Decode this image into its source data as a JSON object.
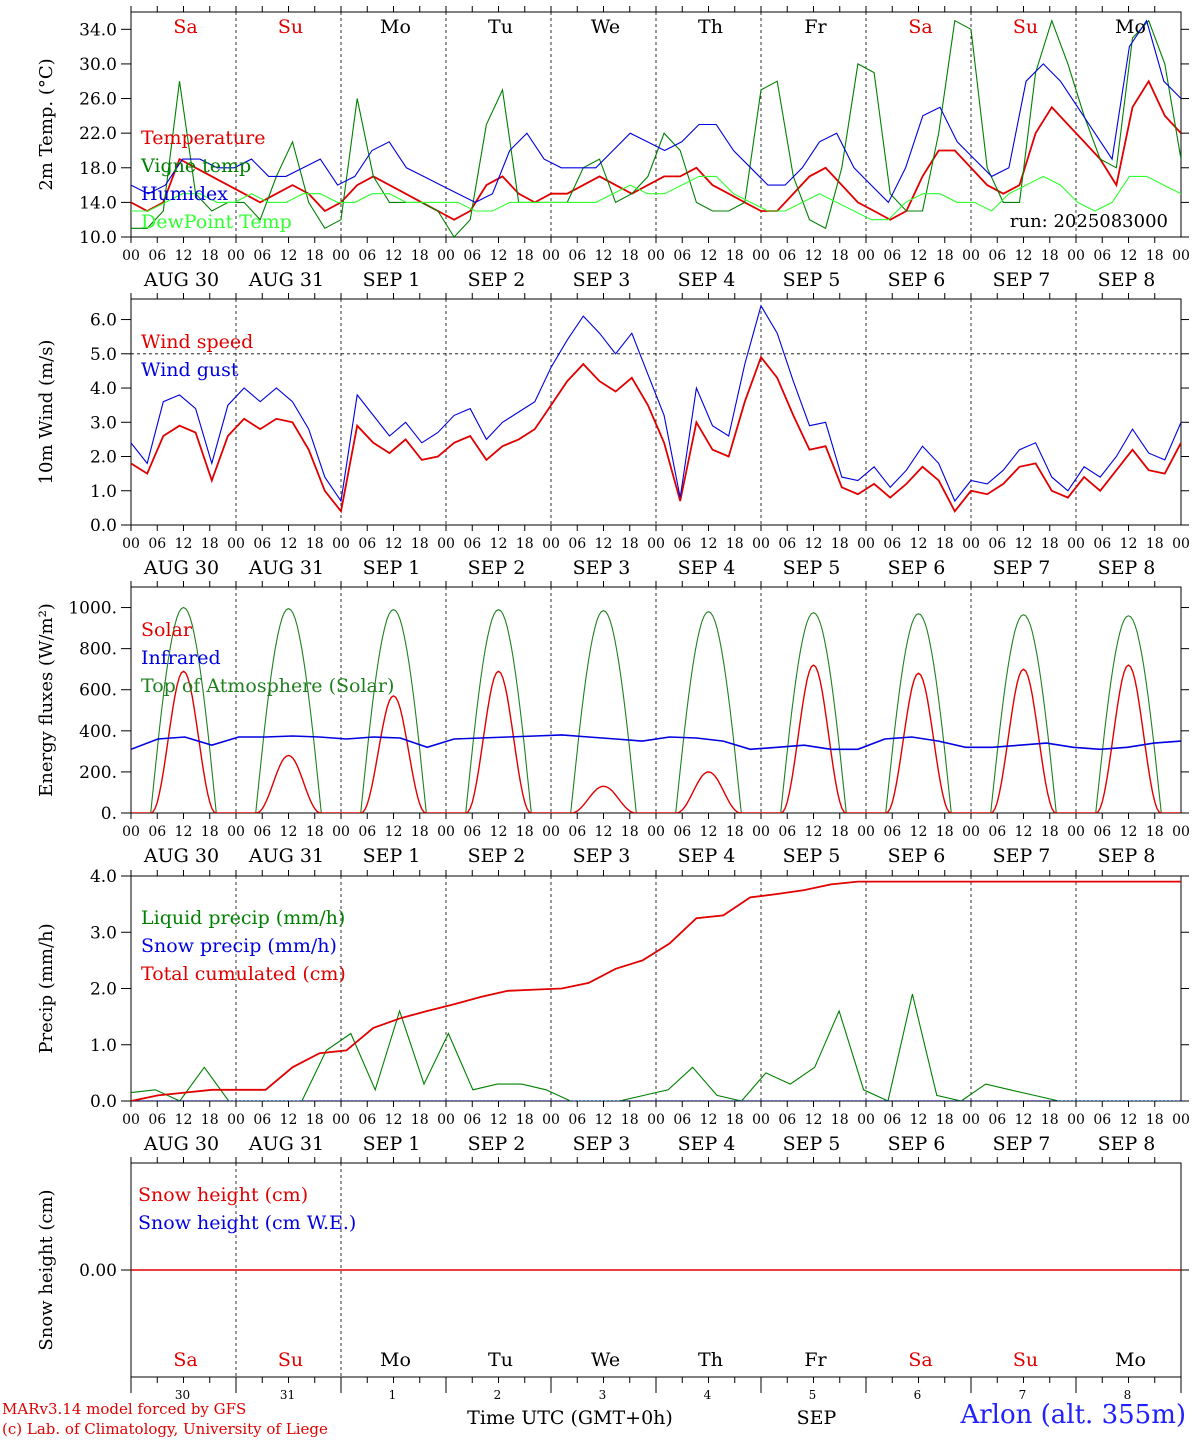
{
  "chart_data": {
    "type": "line",
    "day_names": [
      "Sa",
      "Su",
      "Mo",
      "Tu",
      "We",
      "Th",
      "Fr",
      "Sa",
      "Su",
      "Mo"
    ],
    "day_colors": [
      "#e00000",
      "#e00000",
      "#000000",
      "#000000",
      "#000000",
      "#000000",
      "#000000",
      "#e00000",
      "#e00000",
      "#000000"
    ],
    "date_labels": [
      "AUG 30",
      "AUG 31",
      "SEP  1",
      "SEP  2",
      "SEP  3",
      "SEP  4",
      "SEP  5",
      "SEP  6",
      "SEP  7",
      "SEP  8"
    ],
    "hour_ticks": [
      "00",
      "06",
      "12",
      "18"
    ],
    "bottom_day_numbers": [
      "30",
      "31",
      "1",
      "2",
      "3",
      "4",
      "5",
      "6",
      "7",
      "8"
    ],
    "bottom_month": "SEP",
    "xlabel": "Time UTC (GMT+0h)",
    "run_label": "run: 2025083000",
    "panels": [
      {
        "id": "temperature",
        "ylabel": "2m Temp. (°C)",
        "ylim": [
          10,
          36
        ],
        "yticks": [
          "10.0",
          "14.0",
          "18.0",
          "22.0",
          "26.0",
          "30.0",
          "34.0"
        ],
        "ytick_values": [
          10,
          14,
          18,
          22,
          26,
          30,
          34
        ],
        "series": [
          {
            "name": "Temperature",
            "color": "#e00000",
            "values": [
              14,
              13,
              14,
              19,
              18,
              17,
              16,
              15,
              14,
              15,
              16,
              15,
              13,
              14,
              16,
              17,
              16,
              15,
              14,
              13,
              12,
              13,
              16,
              17,
              15,
              14,
              15,
              15,
              16,
              17,
              16,
              15,
              16,
              17,
              17,
              18,
              16,
              15,
              14,
              13,
              13,
              15,
              17,
              18,
              16,
              14,
              13,
              12,
              13,
              17,
              20,
              20,
              18,
              16,
              15,
              16,
              22,
              25,
              23,
              21,
              19,
              16,
              25,
              28,
              24,
              22
            ]
          },
          {
            "name": "Vigne temp",
            "color": "#008000",
            "values": [
              11,
              11,
              13,
              28,
              15,
              13,
              14,
              14,
              12,
              17,
              21,
              14,
              11,
              12,
              26,
              17,
              14,
              14,
              14,
              13,
              10,
              12,
              23,
              27,
              14,
              14,
              14,
              14,
              18,
              19,
              14,
              15,
              17,
              22,
              20,
              14,
              13,
              13,
              14,
              27,
              28,
              17,
              12,
              11,
              18,
              30,
              29,
              15,
              13,
              13,
              22,
              35,
              34,
              18,
              14,
              14,
              29,
              35,
              30,
              24,
              19,
              18,
              33,
              35,
              30,
              19
            ]
          },
          {
            "name": "Humidex",
            "color": "#0000e0",
            "values": [
              16,
              15,
              16,
              19,
              19,
              18,
              18,
              19,
              17,
              17,
              18,
              19,
              16,
              17,
              20,
              21,
              18,
              17,
              16,
              15,
              14,
              15,
              20,
              22,
              19,
              18,
              18,
              18,
              20,
              22,
              21,
              20,
              21,
              23,
              23,
              20,
              18,
              16,
              16,
              18,
              21,
              22,
              18,
              16,
              14,
              18,
              24,
              25,
              21,
              19,
              17,
              18,
              28,
              30,
              28,
              25,
              22,
              19,
              32,
              35,
              28,
              26
            ]
          },
          {
            "name": "DewPoint Temp",
            "color": "#30ff30",
            "values": [
              13,
              13,
              14,
              15,
              15,
              14,
              14,
              15,
              14,
              14,
              15,
              15,
              14,
              14,
              15,
              15,
              14,
              14,
              14,
              14,
              13,
              13,
              14,
              14,
              14,
              14,
              14,
              14,
              15,
              16,
              15,
              15,
              16,
              17,
              17,
              15,
              14,
              13,
              13,
              14,
              15,
              14,
              13,
              12,
              12,
              14,
              15,
              15,
              14,
              14,
              13,
              15,
              16,
              17,
              16,
              14,
              13,
              14,
              17,
              17,
              16,
              15
            ]
          }
        ]
      },
      {
        "id": "wind",
        "ylabel": "10m Wind (m/s)",
        "ylim": [
          0,
          6.6
        ],
        "yticks": [
          "0.0",
          "1.0",
          "2.0",
          "3.0",
          "4.0",
          "5.0",
          "6.0"
        ],
        "ytick_values": [
          0,
          1,
          2,
          3,
          4,
          5,
          6
        ],
        "reference_line": 5.0,
        "series": [
          {
            "name": "Wind speed",
            "color": "#e00000",
            "values": [
              1.8,
              1.5,
              2.6,
              2.9,
              2.7,
              1.3,
              2.6,
              3.1,
              2.8,
              3.1,
              3.0,
              2.2,
              1.0,
              0.4,
              2.9,
              2.4,
              2.1,
              2.5,
              1.9,
              2.0,
              2.4,
              2.6,
              1.9,
              2.3,
              2.5,
              2.8,
              3.5,
              4.2,
              4.7,
              4.2,
              3.9,
              4.3,
              3.5,
              2.4,
              0.7,
              3.0,
              2.2,
              2.0,
              3.6,
              4.9,
              4.3,
              3.2,
              2.2,
              2.3,
              1.1,
              0.9,
              1.2,
              0.8,
              1.2,
              1.7,
              1.3,
              0.4,
              1.0,
              0.9,
              1.2,
              1.7,
              1.8,
              1.0,
              0.8,
              1.4,
              1.0,
              1.6,
              2.2,
              1.6,
              1.5,
              2.4
            ]
          },
          {
            "name": "Wind gust",
            "color": "#0000e0",
            "values": [
              2.4,
              1.8,
              3.6,
              3.8,
              3.4,
              1.8,
              3.5,
              4.0,
              3.6,
              4.0,
              3.6,
              2.8,
              1.4,
              0.7,
              3.8,
              3.2,
              2.6,
              3.0,
              2.4,
              2.7,
              3.2,
              3.4,
              2.5,
              3.0,
              3.3,
              3.6,
              4.6,
              5.4,
              6.1,
              5.6,
              5.0,
              5.6,
              4.4,
              3.2,
              0.8,
              4.0,
              2.9,
              2.6,
              4.7,
              6.4,
              5.6,
              4.2,
              2.9,
              3.0,
              1.4,
              1.3,
              1.7,
              1.1,
              1.6,
              2.3,
              1.8,
              0.7,
              1.3,
              1.2,
              1.6,
              2.2,
              2.4,
              1.4,
              1.0,
              1.7,
              1.4,
              2.0,
              2.8,
              2.1,
              1.9,
              3.0
            ]
          }
        ]
      },
      {
        "id": "energy",
        "ylabel": "Energy fluxes (W/m²)",
        "ylim": [
          0,
          1100
        ],
        "yticks": [
          "0.",
          "200.",
          "400.",
          "600.",
          "800.",
          "1000."
        ],
        "ytick_values": [
          0,
          200,
          400,
          600,
          800,
          1000
        ],
        "daily_solar_peaks": [
          690,
          280,
          570,
          690,
          130,
          200,
          720,
          680,
          700,
          720
        ],
        "daily_toa_peaks": [
          1000,
          995,
          990,
          990,
          985,
          980,
          975,
          970,
          965,
          960
        ],
        "series": [
          {
            "name": "Solar",
            "color": "#e00000"
          },
          {
            "name": "Infrared",
            "color": "#0000e0",
            "values": [
              310,
              360,
              370,
              330,
              370,
              370,
              375,
              370,
              360,
              370,
              365,
              320,
              360,
              365,
              370,
              375,
              380,
              370,
              360,
              350,
              370,
              365,
              350,
              310,
              320,
              330,
              310,
              310,
              360,
              370,
              350,
              320,
              320,
              330,
              340,
              320,
              310,
              320,
              340,
              350
            ]
          },
          {
            "name": "Top of Atmosphere (Solar)",
            "color": "#208020"
          }
        ]
      },
      {
        "id": "precip",
        "ylabel": "Precip (mm/h)",
        "ylim": [
          0,
          4.0
        ],
        "yticks": [
          "0.0",
          "1.0",
          "2.0",
          "3.0",
          "4.0"
        ],
        "ytick_values": [
          0,
          1,
          2,
          3,
          4
        ],
        "series": [
          {
            "name": "Liquid precip (mm/h)",
            "color": "#008000",
            "values": [
              0.15,
              0.2,
              0.0,
              0.6,
              0.0,
              0.0,
              0.0,
              0.0,
              0.9,
              1.2,
              0.2,
              1.6,
              0.3,
              1.2,
              0.2,
              0.3,
              0.3,
              0.2,
              0.0,
              0.0,
              0.0,
              0.1,
              0.2,
              0.6,
              0.1,
              0.0,
              0.5,
              0.3,
              0.6,
              1.6,
              0.2,
              0.0,
              1.9,
              0.1,
              0.0,
              0.3,
              0.2,
              0.1,
              0.0,
              0.0,
              0.0,
              0.0,
              0.0,
              0.0
            ]
          },
          {
            "name": "Snow precip (mm/h)",
            "color": "#0000e0"
          },
          {
            "name": "Total cumulated (cm)",
            "color": "#e00000",
            "values": [
              0.0,
              0.1,
              0.15,
              0.2,
              0.2,
              0.2,
              0.6,
              0.85,
              0.9,
              1.3,
              1.47,
              1.6,
              1.72,
              1.85,
              1.96,
              1.98,
              2.0,
              2.1,
              2.35,
              2.5,
              2.8,
              3.25,
              3.3,
              3.62,
              3.68,
              3.75,
              3.85,
              3.9,
              3.9,
              3.9,
              3.9,
              3.9,
              3.9,
              3.9,
              3.9,
              3.9,
              3.9,
              3.9,
              3.9,
              3.9
            ]
          }
        ]
      },
      {
        "id": "snow",
        "ylabel": "Snow height (cm)",
        "ylim": [
          -1,
          1
        ],
        "yticks": [
          "0.00"
        ],
        "ytick_values": [
          0
        ],
        "series": [
          {
            "name": "Snow height (cm)",
            "color": "#e00000",
            "values": [
              0,
              0
            ]
          },
          {
            "name": "Snow height (cm W.E.)",
            "color": "#0000e0"
          }
        ]
      }
    ]
  },
  "footer": {
    "model_line": "MARv3.14 model forced by GFS",
    "copyright_line": "(c) Lab. of Climatology, University of Liege",
    "station": "Arlon (alt. 355m)"
  }
}
